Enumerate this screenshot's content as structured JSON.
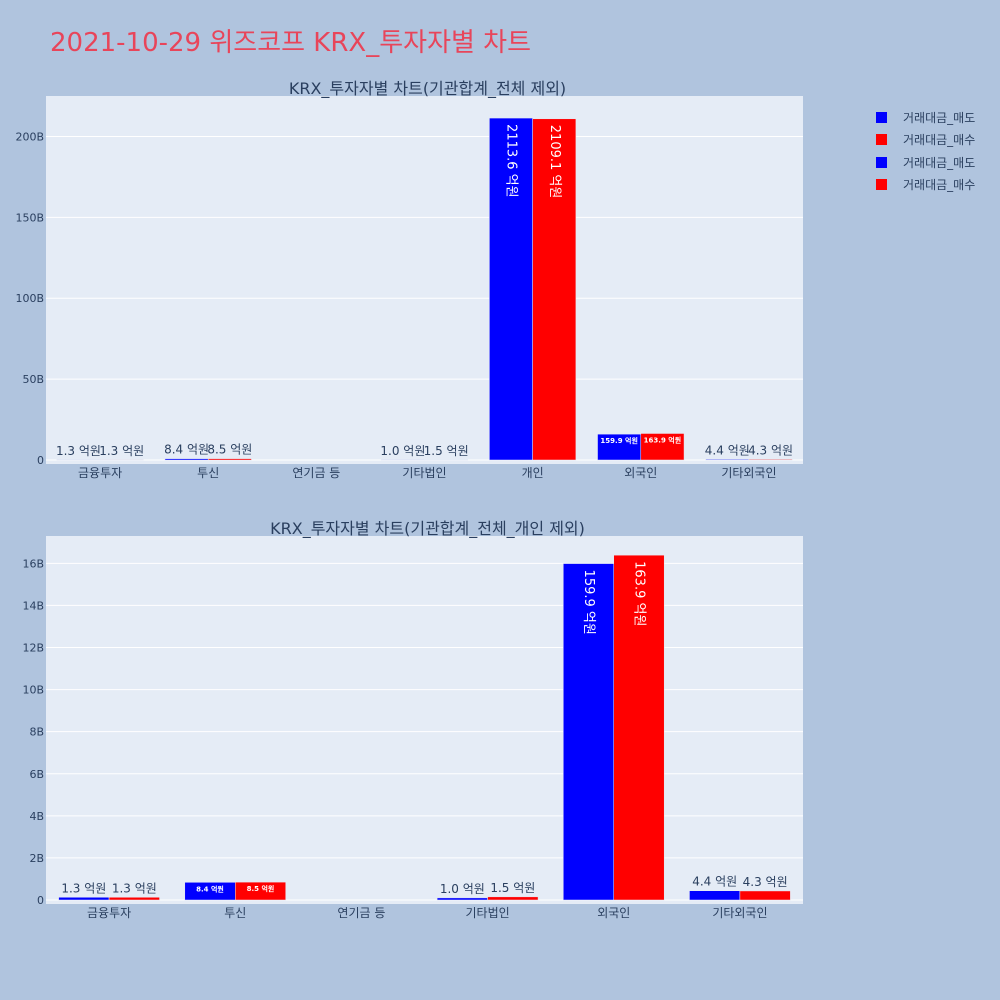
{
  "title": "2021-10-29 위즈코프 KRX_투자자별 차트",
  "legend": [
    {
      "label": "거래대금_매도",
      "color": "#0000ff"
    },
    {
      "label": "거래대금_매수",
      "color": "#ff0000"
    },
    {
      "label": "거래대금_매도",
      "color": "#0000ff"
    },
    {
      "label": "거래대금_매수",
      "color": "#ff0000"
    }
  ],
  "chart_data": [
    {
      "type": "bar",
      "title": "KRX_투자자별 차트(기관합계_전체 제외)",
      "categories": [
        "금융투자",
        "투신",
        "연기금 등",
        "기타법인",
        "개인",
        "외국인",
        "기타외국인"
      ],
      "series": [
        {
          "name": "거래대금_매도",
          "color": "#0000ff",
          "values": [
            130000000,
            840000000,
            0,
            100000000,
            211360000000,
            15990000000,
            440000000
          ],
          "labels": [
            "1.3 억원",
            "8.4 억원",
            "",
            "1.0 억원",
            "2113.6 억원",
            "159.9 억원",
            "4.4 억원"
          ]
        },
        {
          "name": "거래대금_매수",
          "color": "#ff0000",
          "values": [
            130000000,
            850000000,
            0,
            150000000,
            210910000000,
            16390000000,
            430000000
          ],
          "labels": [
            "1.3 억원",
            "8.5 억원",
            "",
            "1.5 억원",
            "2109.1 억원",
            "163.9 억원",
            "4.3 억원"
          ]
        }
      ],
      "ylim": [
        0,
        225000000000
      ],
      "yticks": [
        0,
        50000000000,
        100000000000,
        150000000000,
        200000000000
      ],
      "ytick_labels": [
        "0",
        "50B",
        "100B",
        "150B",
        "200B"
      ],
      "grid": true
    },
    {
      "type": "bar",
      "title": "KRX_투자자별 차트(기관합계_전체_개인 제외)",
      "categories": [
        "금융투자",
        "투신",
        "연기금 등",
        "기타법인",
        "외국인",
        "기타외국인"
      ],
      "series": [
        {
          "name": "거래대금_매도",
          "color": "#0000ff",
          "values": [
            130000000,
            840000000,
            0,
            100000000,
            15990000000,
            440000000
          ],
          "labels": [
            "1.3 억원",
            "8.4 억원",
            "",
            "1.0 억원",
            "159.9 억원",
            "4.4 억원"
          ]
        },
        {
          "name": "거래대금_매수",
          "color": "#ff0000",
          "values": [
            130000000,
            850000000,
            0,
            150000000,
            16390000000,
            430000000
          ],
          "labels": [
            "1.3 억원",
            "8.5 억원",
            "",
            "1.5 억원",
            "163.9 억원",
            "4.3 억원"
          ]
        }
      ],
      "ylim": [
        0,
        17300000000
      ],
      "yticks": [
        0,
        2000000000,
        4000000000,
        6000000000,
        8000000000,
        10000000000,
        12000000000,
        14000000000,
        16000000000
      ],
      "ytick_labels": [
        "0",
        "2B",
        "4B",
        "6B",
        "8B",
        "10B",
        "12B",
        "14B",
        "16B"
      ],
      "grid": true
    }
  ]
}
